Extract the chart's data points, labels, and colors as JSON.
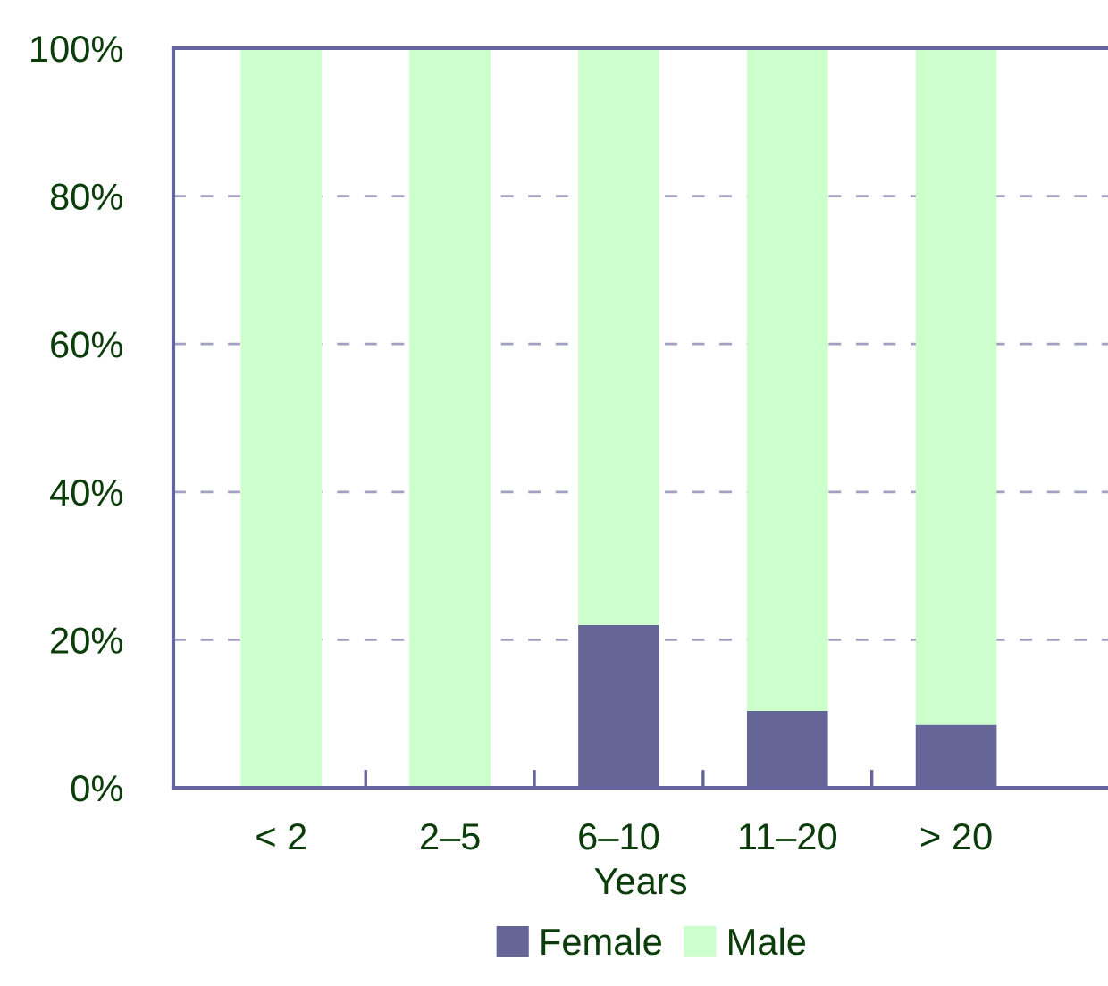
{
  "chart_data": {
    "type": "bar",
    "stacked": true,
    "xlabel": "Years",
    "categories": [
      "< 2",
      "2–5",
      "6–10",
      "11–20",
      "> 20"
    ],
    "series": [
      {
        "name": "Female",
        "color": "#656597",
        "values": [
          0,
          0,
          22.0,
          10.4,
          8.5
        ]
      },
      {
        "name": "Male",
        "color": "#ccffcc",
        "values": [
          100,
          100,
          78.0,
          89.6,
          91.5
        ]
      }
    ],
    "ylim": [
      0,
      100
    ],
    "yticks": [
      {
        "value": 0,
        "label": "0%"
      },
      {
        "value": 20,
        "label": "20%"
      },
      {
        "value": 40,
        "label": "40%"
      },
      {
        "value": 60,
        "label": "60%"
      },
      {
        "value": 80,
        "label": "80%"
      },
      {
        "value": 100,
        "label": "100%"
      }
    ],
    "grid": "y",
    "legend": "bottom"
  }
}
